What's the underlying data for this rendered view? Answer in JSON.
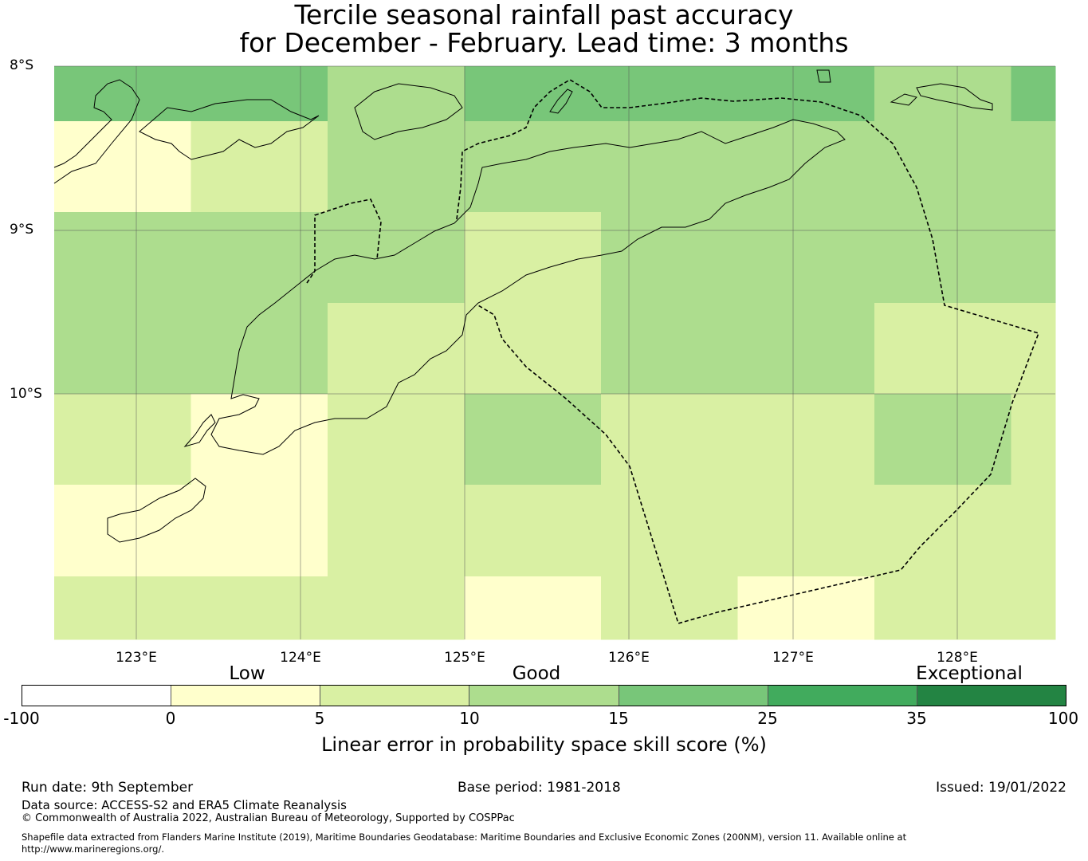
{
  "title": {
    "line1": "Tercile seasonal rainfall past accuracy",
    "line2": "for December - February. Lead time: 3 months"
  },
  "map": {
    "lat_labels": [
      "8°S",
      "9°S",
      "10°S"
    ],
    "lon_labels": [
      "123°E",
      "124°E",
      "125°E",
      "126°E",
      "127°E",
      "128°E"
    ],
    "colors": {
      "band_0_5": "#ffffcc",
      "band_5_10": "#d9f0a3",
      "band_10_15": "#addd8e",
      "band_15_25": "#78c679",
      "band_25_35": "#41ab5d",
      "band_35_100": "#238443"
    },
    "grid_cells": [
      [
        "15-25",
        "15-25",
        "10-15",
        "15-25",
        "15-25",
        "15-25",
        "10-15",
        "15-25"
      ],
      [
        "0-5",
        "5-10",
        "10-15",
        "10-15",
        "10-15",
        "10-15",
        "10-15",
        "10-15"
      ],
      [
        "10-15",
        "10-15",
        "10-15",
        "5-10",
        "10-15",
        "10-15",
        "10-15",
        "10-15"
      ],
      [
        "10-15",
        "10-15",
        "5-10",
        "5-10",
        "10-15",
        "10-15",
        "5-10",
        "5-10"
      ],
      [
        "5-10",
        "0-5",
        "5-10",
        "10-15",
        "5-10",
        "5-10",
        "10-15",
        "5-10"
      ],
      [
        "0-5",
        "0-5",
        "5-10",
        "5-10",
        "5-10",
        "5-10",
        "5-10",
        "5-10"
      ],
      [
        "5-10",
        "5-10",
        "5-10",
        "0-5",
        "5-10",
        "0-5",
        "5-10",
        "5-10"
      ]
    ]
  },
  "legend": {
    "categories": [
      "Low",
      "Good",
      "Exceptional"
    ],
    "ticks": [
      "-100",
      "0",
      "5",
      "10",
      "15",
      "25",
      "35",
      "100"
    ],
    "segment_colors": [
      "#ffffff",
      "#ffffcc",
      "#d9f0a3",
      "#addd8e",
      "#78c679",
      "#41ab5d",
      "#238443"
    ],
    "label": "Linear error in probability space skill score (%)"
  },
  "footer": {
    "run_date": "Run date: 9th September",
    "base_period": "Base period: 1981-2018",
    "issued": "Issued: 19/01/2022",
    "data_source": "Data source: ACCESS-S2 and ERA5 Climate Reanalysis",
    "copyright": "© Commonwealth of Australia 2022, Australian Bureau of Meteorology, Supported by COSPPac",
    "shapefile_line1": "Shapefile data extracted from Flanders Marine Institute (2019), Maritime Boundaries Geodatabase: Maritime Boundaries and Exclusive Economic Zones (200NM), version 11. Available online at",
    "shapefile_line2": "http://www.marineregions.org/."
  }
}
